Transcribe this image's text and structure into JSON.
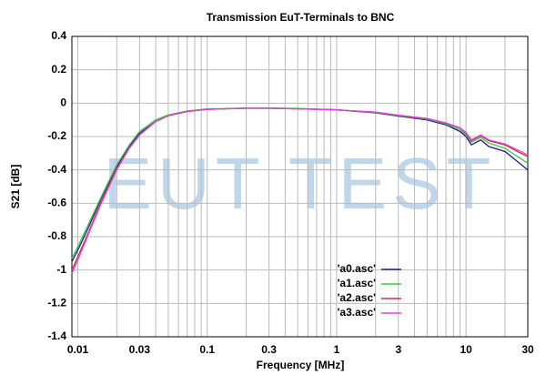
{
  "chart_data": {
    "type": "line",
    "title": "Transmission EuT-Terminals to BNC",
    "xlabel": "Frequency [MHz]",
    "ylabel": "S21 [dB]",
    "watermark": "EUT TEST",
    "xscale": "log",
    "grid": true,
    "legend": "lower-right",
    "xlim": [
      0.009,
      30
    ],
    "ylim": [
      -1.4,
      0.4
    ],
    "xticks": [
      0.01,
      0.03,
      0.1,
      0.3,
      1,
      3,
      10,
      30
    ],
    "xminor": [
      0.02,
      0.04,
      0.05,
      0.06,
      0.07,
      0.08,
      0.09,
      0.2,
      0.4,
      0.5,
      0.6,
      0.7,
      0.8,
      0.9,
      2,
      4,
      5,
      6,
      7,
      8,
      9,
      20
    ],
    "yticks": [
      0.4,
      0.2,
      0,
      -0.2,
      -0.4,
      -0.6,
      -0.8,
      -1,
      -1.2,
      -1.4
    ],
    "x": [
      0.009,
      0.01,
      0.012,
      0.015,
      0.02,
      0.025,
      0.03,
      0.04,
      0.05,
      0.07,
      0.1,
      0.2,
      0.3,
      0.5,
      1,
      2,
      3,
      5,
      7,
      9,
      10,
      11,
      13,
      15,
      20,
      25,
      30
    ],
    "series": [
      {
        "name": "'a0.asc'",
        "color": "#1c1c8c",
        "values": [
          -0.95,
          -0.88,
          -0.75,
          -0.58,
          -0.38,
          -0.26,
          -0.18,
          -0.11,
          -0.075,
          -0.05,
          -0.037,
          -0.03,
          -0.03,
          -0.033,
          -0.04,
          -0.058,
          -0.078,
          -0.1,
          -0.13,
          -0.17,
          -0.2,
          -0.25,
          -0.22,
          -0.26,
          -0.29,
          -0.35,
          -0.4
        ]
      },
      {
        "name": "'a1.asc'",
        "color": "#3cc83c",
        "values": [
          -0.93,
          -0.86,
          -0.73,
          -0.57,
          -0.37,
          -0.25,
          -0.17,
          -0.1,
          -0.07,
          -0.047,
          -0.035,
          -0.03,
          -0.03,
          -0.032,
          -0.04,
          -0.056,
          -0.075,
          -0.096,
          -0.125,
          -0.16,
          -0.19,
          -0.235,
          -0.205,
          -0.24,
          -0.27,
          -0.32,
          -0.36
        ]
      },
      {
        "name": "'a2.asc'",
        "color": "#c8304a",
        "values": [
          -1.0,
          -0.92,
          -0.78,
          -0.6,
          -0.39,
          -0.27,
          -0.19,
          -0.11,
          -0.075,
          -0.05,
          -0.037,
          -0.031,
          -0.031,
          -0.034,
          -0.04,
          -0.055,
          -0.073,
          -0.093,
          -0.12,
          -0.15,
          -0.18,
          -0.225,
          -0.195,
          -0.225,
          -0.25,
          -0.29,
          -0.32
        ]
      },
      {
        "name": "'a3.asc'",
        "color": "#e040e0",
        "values": [
          -1.02,
          -0.94,
          -0.79,
          -0.61,
          -0.4,
          -0.27,
          -0.19,
          -0.11,
          -0.075,
          -0.05,
          -0.037,
          -0.031,
          -0.031,
          -0.034,
          -0.04,
          -0.054,
          -0.072,
          -0.092,
          -0.118,
          -0.148,
          -0.175,
          -0.22,
          -0.19,
          -0.22,
          -0.245,
          -0.28,
          -0.31
        ]
      }
    ]
  }
}
